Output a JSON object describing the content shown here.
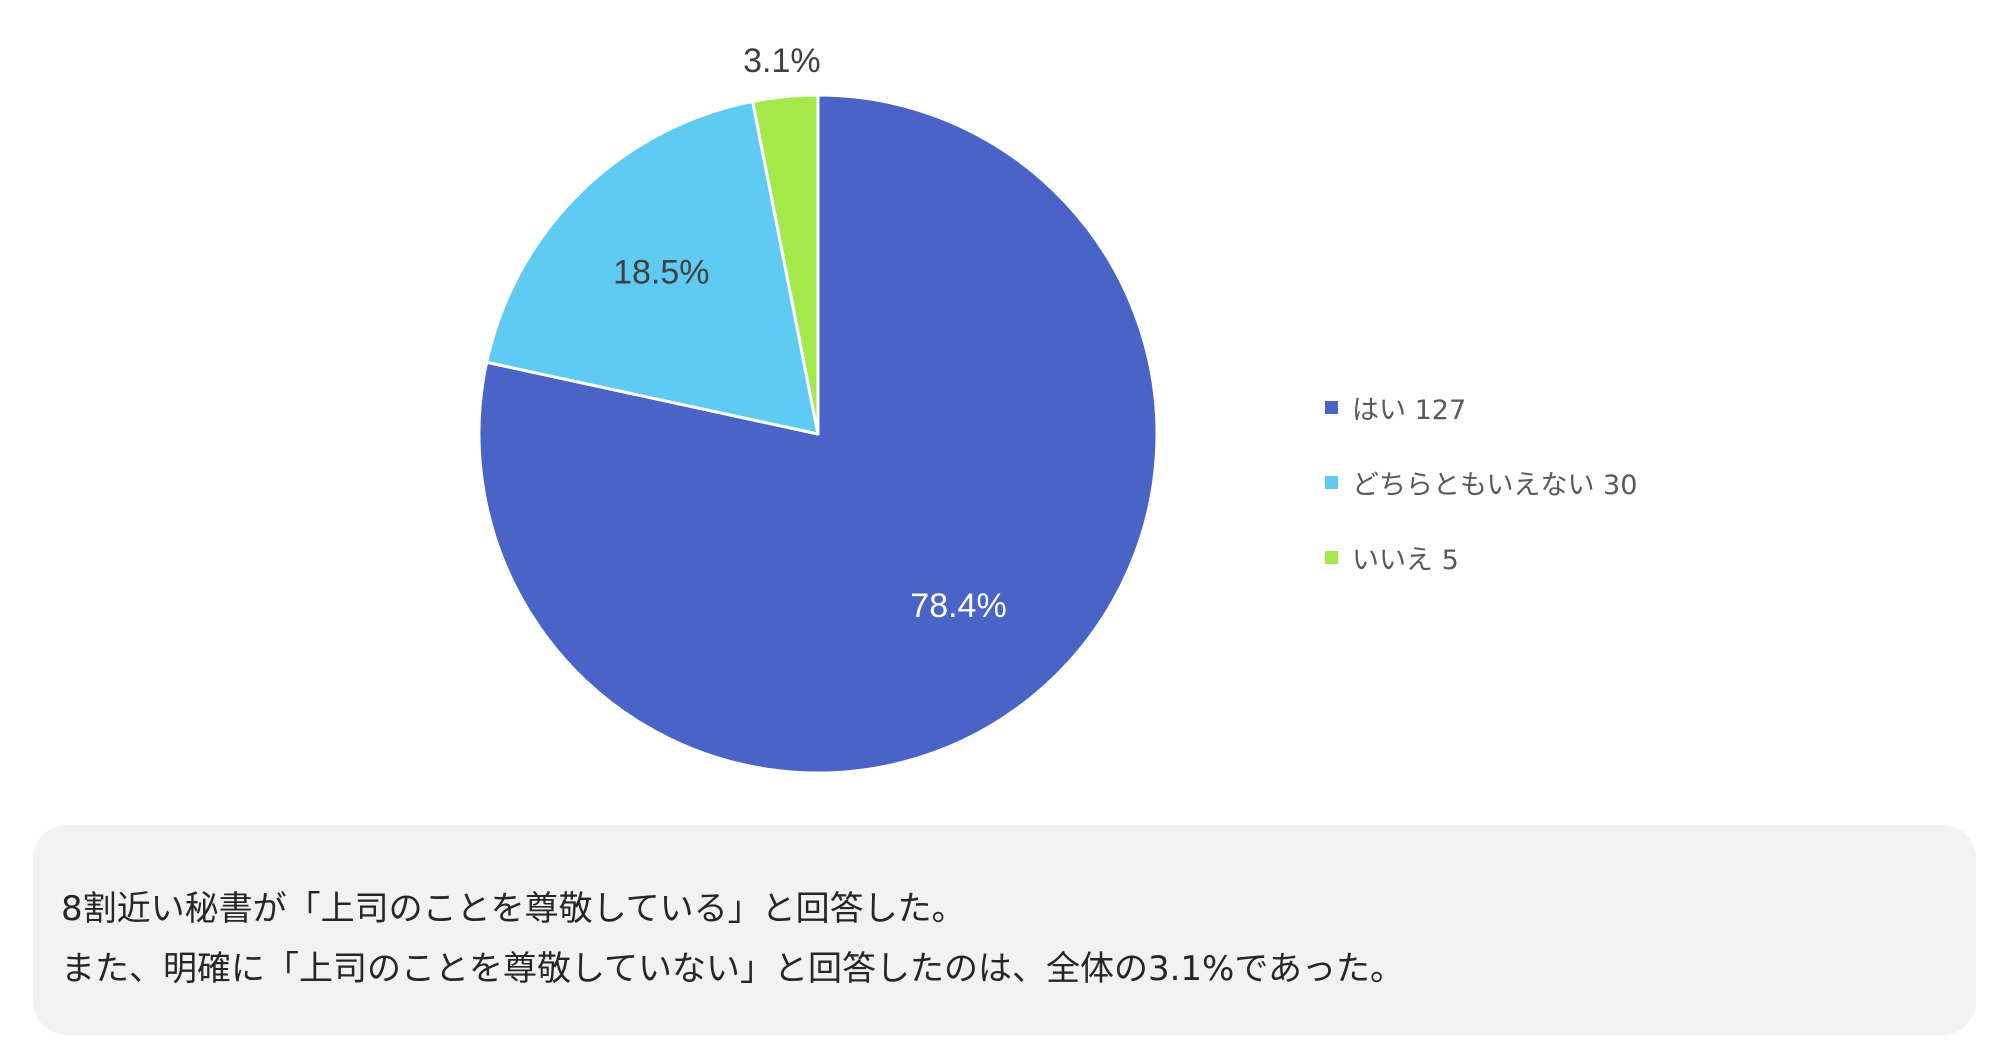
{
  "chart_data": {
    "type": "pie",
    "title": "",
    "slices": [
      {
        "label": "はい",
        "count": 127,
        "percent": 78.4,
        "percent_label": "78.4%",
        "color": "#4a63c7",
        "label_color": "#ffffff"
      },
      {
        "label": "どちらともいえない",
        "count": 30,
        "percent": 18.5,
        "percent_label": "18.5%",
        "color": "#5fcbf3",
        "label_color": "#404040"
      },
      {
        "label": "いいえ",
        "count": 5,
        "percent": 3.1,
        "percent_label": "3.1%",
        "color": "#a4e84a",
        "label_color": "#404040"
      }
    ],
    "legend": [
      {
        "text": "はい 127"
      },
      {
        "text": "どちらともいえない 30"
      },
      {
        "text": "いいえ 5"
      }
    ],
    "legend_position": "right",
    "start": "12 o'clock",
    "direction": "clockwise"
  },
  "summary": {
    "line1": "8割近い秘書が「上司のことを尊敬している」と回答した。",
    "line2": "また、明確に「上司のことを尊敬していない」と回答したのは、全体の3.1%であった。"
  }
}
